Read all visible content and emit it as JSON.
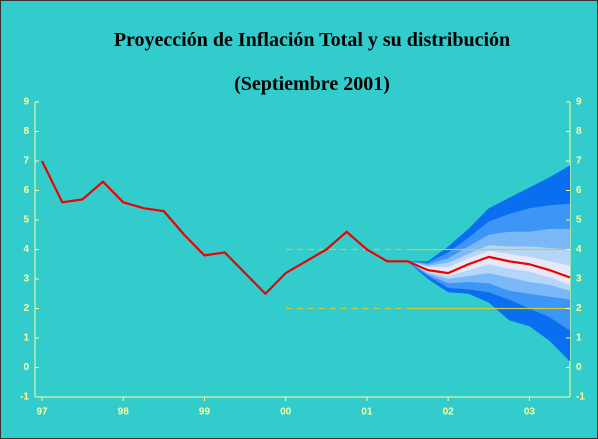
{
  "chart_data": {
    "type": "fan",
    "title": "Proyección de Inflación Total y su distribución",
    "subtitle": "(Septiembre 2001)",
    "background": "#33cccc",
    "axis_color": "#ffff99",
    "xlim": [
      1997,
      2003.5
    ],
    "xticks": [
      {
        "value": 1997,
        "label": "97"
      },
      {
        "value": 1998,
        "label": "98"
      },
      {
        "value": 1999,
        "label": "99"
      },
      {
        "value": 2000,
        "label": "00"
      },
      {
        "value": 2001,
        "label": "01"
      },
      {
        "value": 2002,
        "label": "02"
      },
      {
        "value": 2003,
        "label": "03"
      }
    ],
    "ylim": [
      -1,
      9
    ],
    "yticks": [
      -1,
      0,
      1,
      2,
      3,
      4,
      5,
      6,
      7,
      8,
      9
    ],
    "mirror_y_axis": true,
    "x": [
      1997,
      1997.25,
      1997.5,
      1997.75,
      1998,
      1998.25,
      1998.5,
      1998.75,
      1999,
      1999.25,
      1999.5,
      1999.75,
      2000,
      2000.25,
      2000.5,
      2000.75,
      2001,
      2001.25,
      2001.5,
      2001.75,
      2002,
      2002.25,
      2002.5,
      2002.75,
      2003,
      2003.25,
      2003.5
    ],
    "series": [
      {
        "color": "#ee0000",
        "values": [
          7.0,
          5.6,
          5.7,
          6.3,
          5.6,
          5.4,
          5.3,
          4.5,
          3.8,
          3.9,
          3.2,
          2.5,
          3.2,
          3.6,
          4.0,
          4.6,
          4.0,
          3.6,
          3.6,
          3.3,
          3.2,
          3.5,
          3.75,
          3.6,
          3.5,
          3.3,
          3.05
        ]
      }
    ],
    "fan": {
      "x": [
        2001.5,
        2001.75,
        2002,
        2002.25,
        2002.5,
        2002.75,
        2003,
        2003.25,
        2003.5
      ],
      "bands": [
        {
          "color": "#0a6ef0",
          "upper": [
            3.6,
            3.6,
            4.1,
            4.7,
            5.4,
            5.75,
            6.1,
            6.45,
            6.85
          ],
          "lower": [
            3.6,
            3.0,
            2.55,
            2.5,
            2.2,
            1.6,
            1.4,
            0.9,
            0.2
          ]
        },
        {
          "color": "#3d95f5",
          "upper": [
            3.6,
            3.55,
            3.9,
            4.4,
            4.95,
            5.2,
            5.4,
            5.5,
            5.55
          ],
          "lower": [
            3.6,
            3.1,
            2.7,
            2.65,
            2.55,
            2.3,
            2.0,
            1.7,
            1.25
          ]
        },
        {
          "color": "#7ab8f8",
          "upper": [
            3.6,
            3.5,
            3.7,
            4.1,
            4.5,
            4.6,
            4.6,
            4.7,
            4.7
          ],
          "lower": [
            3.6,
            3.15,
            2.85,
            2.9,
            2.85,
            2.6,
            2.5,
            2.4,
            2.3
          ]
        },
        {
          "color": "#b4d6fb",
          "upper": [
            3.6,
            3.45,
            3.55,
            3.85,
            4.15,
            4.1,
            4.1,
            4.05,
            4.0
          ],
          "lower": [
            3.6,
            3.2,
            3.0,
            3.1,
            3.2,
            3.05,
            2.9,
            2.8,
            2.6
          ]
        },
        {
          "color": "#e8e8f8",
          "upper": [
            3.6,
            3.4,
            3.4,
            3.7,
            3.95,
            3.85,
            3.75,
            3.6,
            3.45
          ],
          "lower": [
            3.6,
            3.25,
            3.1,
            3.3,
            3.5,
            3.35,
            3.25,
            3.05,
            2.8
          ]
        }
      ]
    },
    "reference_lines": [
      {
        "value": 4,
        "from": 2000,
        "solid_from": 2001.5,
        "color": "#cccc33"
      },
      {
        "value": 2,
        "from": 2000,
        "solid_from": 2001.5,
        "color": "#cccc33"
      }
    ]
  }
}
